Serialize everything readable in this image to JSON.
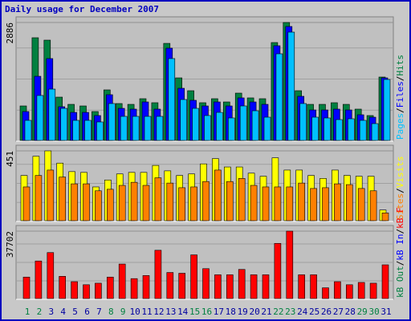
{
  "title": "Daily usage for December 2007",
  "legend_separator": "/",
  "chart_data": [
    {
      "type": "bar",
      "ylim": [
        0,
        2886
      ],
      "yticks": [
        2886
      ],
      "series": [
        {
          "name": "Hits",
          "color": "#008040",
          "values": [
            844,
            2513,
            2454,
            1060,
            883,
            844,
            707,
            1237,
            903,
            883,
            1021,
            923,
            2375,
            1531,
            1217,
            923,
            1021,
            942,
            1158,
            1041,
            1021,
            2395,
            2886,
            1217,
            883,
            883,
            923,
            883,
            766,
            609,
            1551
          ]
        },
        {
          "name": "Files",
          "color": "#0000ff",
          "values": [
            707,
            1570,
            2003,
            825,
            687,
            687,
            609,
            1119,
            785,
            766,
            942,
            766,
            2258,
            1276,
            982,
            844,
            942,
            844,
            1041,
            942,
            883,
            2317,
            2788,
            1080,
            746,
            746,
            766,
            746,
            628,
            569,
            1531
          ]
        },
        {
          "name": "Pages",
          "color": "#00c0ff",
          "values": [
            491,
            1100,
            1256,
            785,
            491,
            491,
            452,
            903,
            589,
            589,
            589,
            589,
            2003,
            1001,
            785,
            609,
            687,
            550,
            844,
            726,
            569,
            2120,
            2650,
            903,
            569,
            550,
            510,
            530,
            491,
            412,
            1492
          ]
        }
      ]
    },
    {
      "type": "bar",
      "ylim": [
        0,
        451
      ],
      "yticks": [
        451
      ],
      "series": [
        {
          "name": "Visits",
          "color": "#ffff00",
          "values": [
            292,
            416,
            451,
            372,
            317,
            312,
            218,
            263,
            302,
            312,
            312,
            357,
            322,
            292,
            302,
            367,
            401,
            347,
            347,
            307,
            287,
            406,
            327,
            327,
            292,
            273,
            327,
            292,
            287,
            287,
            69
          ]
        },
        {
          "name": "Sites",
          "color": "#ff8000",
          "values": [
            218,
            292,
            327,
            282,
            238,
            238,
            193,
            203,
            228,
            248,
            228,
            277,
            243,
            213,
            218,
            253,
            327,
            253,
            273,
            228,
            218,
            218,
            218,
            243,
            208,
            213,
            238,
            233,
            208,
            193,
            50
          ]
        }
      ]
    },
    {
      "type": "bar",
      "ylim": [
        0,
        37702
      ],
      "yticks": [
        37702
      ],
      "categories": [
        "1",
        "2",
        "3",
        "4",
        "5",
        "6",
        "7",
        "8",
        "9",
        "10",
        "11",
        "12",
        "13",
        "14",
        "15",
        "16",
        "17",
        "18",
        "19",
        "20",
        "21",
        "22",
        "23",
        "24",
        "25",
        "26",
        "27",
        "28",
        "29",
        "30",
        "31"
      ],
      "category_colors": [
        "#008040",
        "#008040",
        "#0000a0",
        "#0000a0",
        "#0000a0",
        "#0000a0",
        "#0000a0",
        "#008040",
        "#008040",
        "#0000a0",
        "#0000a0",
        "#0000a0",
        "#0000a0",
        "#0000a0",
        "#008040",
        "#008040",
        "#0000a0",
        "#0000a0",
        "#0000a0",
        "#0000a0",
        "#0000a0",
        "#008040",
        "#008040",
        "#0000a0",
        "#0000a0",
        "#0000a0",
        "#0000a0",
        "#0000a0",
        "#008040",
        "#008040",
        "#0000a0"
      ],
      "series": [
        {
          "name": "kB F",
          "color": "#ff0000",
          "values": [
            11996,
            20993,
            25706,
            12424,
            9425,
            7711,
            8569,
            11996,
            19279,
            11139,
            12853,
            26992,
            14566,
            14138,
            24420,
            16709,
            13281,
            13281,
            16280,
            13281,
            13281,
            30847,
            37702,
            13281,
            13281,
            5998,
            9425,
            7711,
            8997,
            8569,
            18851
          ]
        }
      ],
      "extra_legend": [
        {
          "name": "kB In",
          "color": "#0000ff"
        },
        {
          "name": "kB Out",
          "color": "#008040"
        }
      ]
    }
  ]
}
